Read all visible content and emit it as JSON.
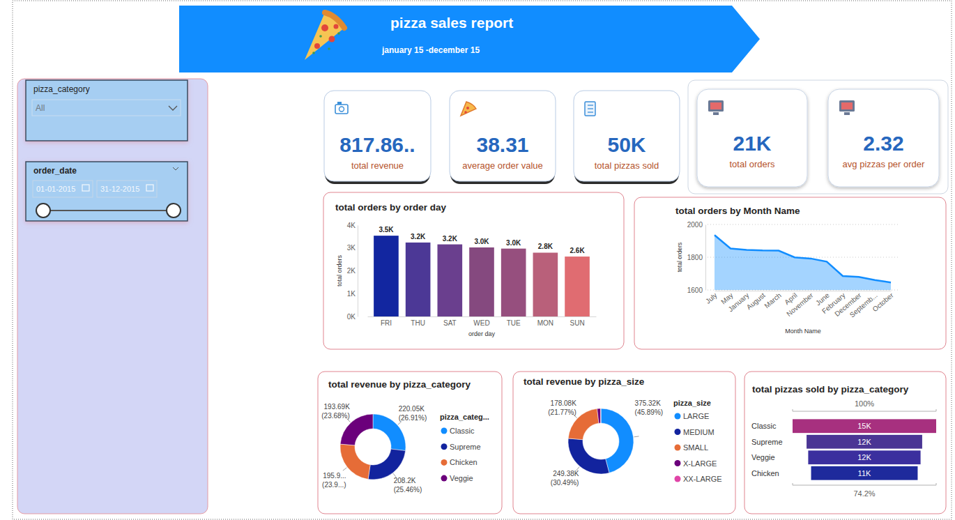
{
  "header": {
    "title": "pizza sales report",
    "subtitle": "january 15 -december 15"
  },
  "filters": [
    {
      "title": "pizza_category",
      "value": "All"
    },
    {
      "title": "order_date",
      "start": "01-01-2015",
      "end": "31-12-2015"
    }
  ],
  "kpis": [
    {
      "value": "817.86..",
      "label": "total revenue"
    },
    {
      "value": "38.31",
      "label": "average order value"
    },
    {
      "value": "50K",
      "label": "total pizzas sold"
    },
    {
      "value": "21K",
      "label": "total orders"
    },
    {
      "value": "2.32",
      "label": "avg pizzas per order"
    }
  ],
  "chart_data": [
    {
      "type": "bar",
      "title": "total orders by order day",
      "x_label": "order day",
      "y_label": "total orders",
      "categories": [
        "FRI",
        "THU",
        "SAT",
        "WED",
        "TUE",
        "MON",
        "SUN"
      ],
      "values": [
        3538,
        3239,
        3158,
        3024,
        2973,
        2794,
        2624
      ],
      "value_labels": [
        "3.5K",
        "3.2K",
        "3.2K",
        "3.0K",
        "3.0K",
        "2.8K",
        "2.6K"
      ],
      "colors": [
        "#1226A0",
        "#4C3896",
        "#6A3F8E",
        "#85497F",
        "#964F7E",
        "#B9607A",
        "#E06C71"
      ],
      "ylim": [
        0,
        4000
      ],
      "yticks": [
        {
          "value": 0,
          "label": "0K"
        },
        {
          "value": 1000,
          "label": "1K"
        },
        {
          "value": 2000,
          "label": "2K"
        },
        {
          "value": 3000,
          "label": "3K"
        },
        {
          "value": 4000,
          "label": "4K"
        }
      ],
      "grid": false,
      "data_labels": true
    },
    {
      "type": "area",
      "title": "total orders by Month Name",
      "x_label": "Month Name",
      "y_label": "total orders",
      "categories": [
        "July",
        "May",
        "January",
        "August",
        "March",
        "April",
        "November",
        "June",
        "February",
        "December",
        "Septemb...",
        "October"
      ],
      "values": [
        1935,
        1853,
        1845,
        1841,
        1840,
        1799,
        1792,
        1773,
        1685,
        1680,
        1661,
        1646
      ],
      "color": "#118DFF",
      "ylim": [
        1600,
        2000
      ],
      "yticks": [
        1600,
        1800,
        2000
      ],
      "grid": true
    },
    {
      "type": "donut",
      "title": "total revenue by pizza_category",
      "legend_title": "pizza_categ...",
      "legend": "right",
      "categories": [
        "Classic",
        "Supreme",
        "Chicken",
        "Veggie"
      ],
      "values": [
        220053.1,
        208197,
        195919.5,
        193690.45
      ],
      "value_labels": [
        "220.05K",
        "208.2K",
        "195.9...",
        "193.69K"
      ],
      "percent_labels": [
        "(26.91%)",
        "(25.46%)",
        "(23.9...)",
        "(23.68%)"
      ],
      "colors": [
        "#118DFF",
        "#12239E",
        "#E66C37",
        "#6B007B"
      ],
      "data_labels": true
    },
    {
      "type": "donut",
      "title": "total revenue by pizza_size",
      "legend_title": "pizza_size",
      "legend": "right",
      "categories": [
        "LARGE",
        "MEDIUM",
        "SMALL",
        "X-LARGE",
        "XX-LARGE"
      ],
      "values": [
        375318.7,
        249382.25,
        178076.5,
        14076,
        1006.6
      ],
      "value_labels": [
        "375.32K",
        "249.38K",
        "178.08K",
        null,
        null
      ],
      "percent_labels": [
        "(45.89%)",
        "(30.49%)",
        "(21.77%)",
        null,
        null
      ],
      "colors": [
        "#118DFF",
        "#12239E",
        "#E66C37",
        "#6B007B",
        "#E044A7"
      ],
      "data_labels": true
    },
    {
      "type": "funnel",
      "title": "total pizzas sold by pizza_category",
      "categories": [
        "Classic",
        "Supreme",
        "Veggie",
        "Chicken"
      ],
      "values": [
        14888,
        11987,
        11649,
        11050
      ],
      "value_labels": [
        "15K",
        "12K",
        "12K",
        "11K"
      ],
      "colors": [
        "#A7307F",
        "#4A3594",
        "#3B2F9E",
        "#1E2A9C"
      ],
      "annotations": [
        "100%",
        "74.2%"
      ],
      "data_labels": true
    }
  ]
}
